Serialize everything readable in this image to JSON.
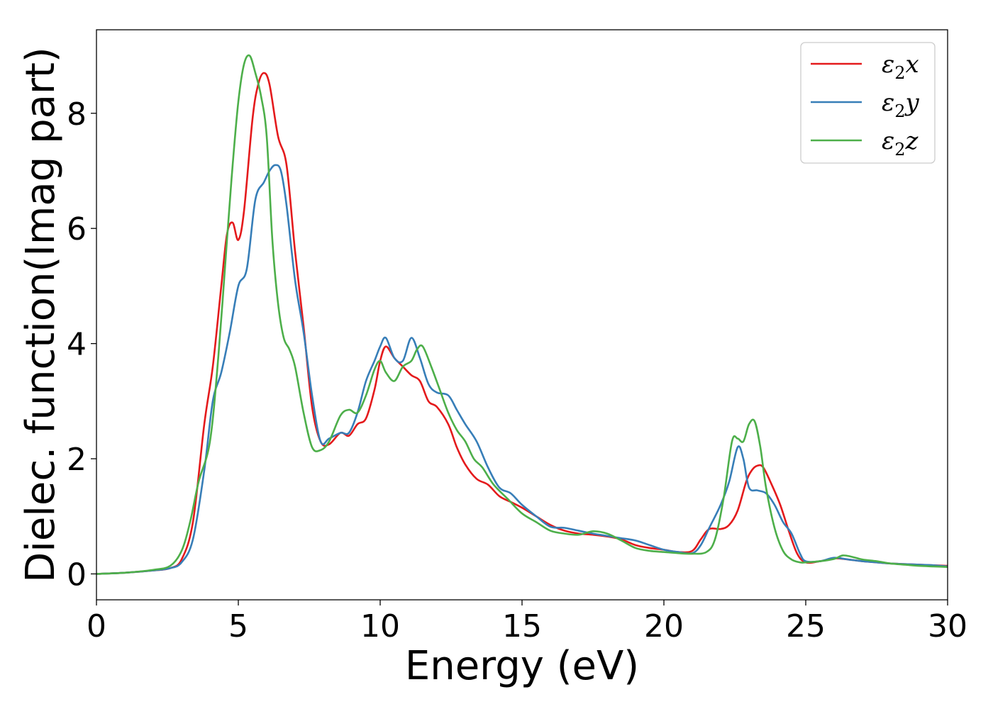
{
  "chart_data": {
    "type": "line",
    "title": "",
    "xlabel": "Energy (eV)",
    "ylabel": "Dielec. function(Imag part)",
    "xlim": [
      0,
      30
    ],
    "ylim": [
      -0.45,
      9.45
    ],
    "xticks": [
      0,
      5,
      10,
      15,
      20,
      25,
      30
    ],
    "xtick_labels": [
      "0",
      "5",
      "10",
      "15",
      "20",
      "25",
      "30"
    ],
    "yticks": [
      0,
      2,
      4,
      6,
      8
    ],
    "ytick_labels": [
      "0",
      "2",
      "4",
      "6",
      "8"
    ],
    "grid": false,
    "legend_position": "top-right",
    "series": [
      {
        "name": "ε₂x",
        "legend_base": "ε",
        "legend_sub": "2",
        "legend_axis": "x",
        "color": "#e41a1c",
        "x": [
          0,
          1,
          2,
          2.6,
          3,
          3.4,
          3.8,
          4.1,
          4.4,
          4.6,
          4.8,
          5,
          5.2,
          5.5,
          5.7,
          5.9,
          6.1,
          6.4,
          6.7,
          7,
          7.3,
          7.6,
          7.9,
          8.2,
          8.6,
          8.9,
          9.2,
          9.5,
          9.8,
          10,
          10.2,
          10.5,
          10.8,
          11.1,
          11.4,
          11.7,
          12,
          12.4,
          12.7,
          13,
          13.4,
          13.8,
          14.2,
          14.6,
          15,
          15.5,
          16,
          16.5,
          17,
          17.5,
          18,
          18.5,
          19,
          19.5,
          20,
          20.5,
          21,
          21.3,
          21.6,
          22,
          22.3,
          22.6,
          22.9,
          23.1,
          23.3,
          23.5,
          23.8,
          24.1,
          24.4,
          24.7,
          25,
          25.5,
          26,
          26.5,
          27,
          27.5,
          28,
          28.5,
          29,
          29.5,
          30
        ],
        "y": [
          0,
          0.02,
          0.06,
          0.1,
          0.25,
          0.9,
          2.6,
          3.6,
          5.0,
          5.9,
          6.1,
          5.8,
          6.3,
          7.9,
          8.5,
          8.7,
          8.5,
          7.6,
          7.1,
          5.6,
          4.3,
          2.9,
          2.3,
          2.25,
          2.45,
          2.4,
          2.6,
          2.7,
          3.2,
          3.7,
          3.95,
          3.75,
          3.6,
          3.45,
          3.35,
          3.0,
          2.9,
          2.6,
          2.2,
          1.9,
          1.65,
          1.55,
          1.35,
          1.25,
          1.15,
          1.0,
          0.85,
          0.75,
          0.7,
          0.68,
          0.65,
          0.6,
          0.5,
          0.45,
          0.42,
          0.38,
          0.4,
          0.6,
          0.78,
          0.78,
          0.85,
          1.1,
          1.6,
          1.8,
          1.88,
          1.85,
          1.55,
          1.2,
          0.75,
          0.35,
          0.2,
          0.22,
          0.27,
          0.25,
          0.22,
          0.2,
          0.18,
          0.17,
          0.16,
          0.15,
          0.14
        ]
      },
      {
        "name": "ε₂y",
        "legend_base": "ε",
        "legend_sub": "2",
        "legend_axis": "y",
        "color": "#377eb8",
        "x": [
          0,
          1,
          2,
          2.6,
          3,
          3.4,
          3.8,
          4.1,
          4.4,
          4.7,
          5,
          5.3,
          5.6,
          5.9,
          6.1,
          6.3,
          6.5,
          6.7,
          7,
          7.3,
          7.6,
          7.9,
          8.2,
          8.6,
          8.9,
          9.2,
          9.5,
          9.8,
          10,
          10.2,
          10.5,
          10.8,
          11.1,
          11.4,
          11.7,
          12,
          12.4,
          12.7,
          13,
          13.4,
          13.8,
          14.2,
          14.6,
          15,
          15.5,
          16,
          16.5,
          17,
          17.5,
          18,
          18.5,
          19,
          19.5,
          20,
          20.5,
          21,
          21.3,
          21.6,
          22,
          22.3,
          22.6,
          22.8,
          23,
          23.3,
          23.6,
          23.9,
          24.2,
          24.5,
          24.8,
          25,
          25.5,
          26,
          26.5,
          27,
          27.5,
          28,
          28.5,
          29,
          29.5,
          30
        ],
        "y": [
          0,
          0.02,
          0.06,
          0.1,
          0.2,
          0.6,
          1.8,
          3.0,
          3.5,
          4.2,
          5.0,
          5.3,
          6.5,
          6.8,
          7.0,
          7.1,
          7.0,
          6.4,
          5.1,
          4.2,
          3.1,
          2.3,
          2.35,
          2.45,
          2.45,
          2.8,
          3.35,
          3.7,
          3.95,
          4.1,
          3.75,
          3.7,
          4.1,
          3.75,
          3.3,
          3.15,
          3.1,
          2.85,
          2.6,
          2.3,
          1.85,
          1.5,
          1.4,
          1.2,
          1.0,
          0.82,
          0.8,
          0.75,
          0.7,
          0.66,
          0.62,
          0.58,
          0.5,
          0.42,
          0.38,
          0.36,
          0.5,
          0.8,
          1.2,
          1.6,
          2.2,
          2.0,
          1.5,
          1.45,
          1.4,
          1.2,
          0.9,
          0.7,
          0.35,
          0.22,
          0.22,
          0.28,
          0.25,
          0.22,
          0.2,
          0.18,
          0.17,
          0.16,
          0.15,
          0.13
        ]
      },
      {
        "name": "ε₂z",
        "legend_base": "ε",
        "legend_sub": "2",
        "legend_axis": "z",
        "color": "#4daf4a",
        "x": [
          0,
          1,
          2,
          2.6,
          3,
          3.3,
          3.6,
          4,
          4.3,
          4.6,
          4.8,
          5,
          5.2,
          5.4,
          5.6,
          5.8,
          6,
          6.2,
          6.4,
          6.6,
          6.8,
          7,
          7.3,
          7.6,
          7.9,
          8.2,
          8.6,
          8.9,
          9.2,
          9.5,
          9.8,
          10,
          10.2,
          10.5,
          10.8,
          11.1,
          11.3,
          11.5,
          11.8,
          12.1,
          12.4,
          12.7,
          13,
          13.3,
          13.6,
          14,
          14.5,
          15,
          15.5,
          16,
          16.5,
          17,
          17.5,
          18,
          18.5,
          19,
          19.5,
          20,
          20.5,
          21,
          21.5,
          21.8,
          22.1,
          22.4,
          22.6,
          22.8,
          23,
          23.2,
          23.4,
          23.6,
          23.9,
          24.2,
          24.5,
          24.8,
          25,
          25.5,
          26,
          26.3,
          26.6,
          27,
          27.5,
          28,
          28.5,
          29,
          29.5,
          30
        ],
        "y": [
          0,
          0.02,
          0.07,
          0.14,
          0.4,
          0.9,
          1.6,
          2.3,
          3.8,
          5.8,
          7.1,
          8.2,
          8.85,
          9.0,
          8.7,
          8.3,
          7.6,
          5.8,
          4.7,
          4.1,
          3.9,
          3.6,
          2.8,
          2.2,
          2.15,
          2.3,
          2.75,
          2.85,
          2.8,
          3.1,
          3.55,
          3.7,
          3.5,
          3.35,
          3.6,
          3.7,
          3.9,
          3.95,
          3.6,
          3.2,
          2.8,
          2.5,
          2.3,
          2.0,
          1.85,
          1.55,
          1.3,
          1.05,
          0.9,
          0.75,
          0.7,
          0.68,
          0.74,
          0.7,
          0.58,
          0.45,
          0.4,
          0.38,
          0.36,
          0.35,
          0.38,
          0.6,
          1.3,
          2.3,
          2.35,
          2.3,
          2.6,
          2.65,
          2.2,
          1.5,
          0.8,
          0.4,
          0.25,
          0.2,
          0.2,
          0.22,
          0.26,
          0.32,
          0.3,
          0.25,
          0.22,
          0.18,
          0.16,
          0.14,
          0.13,
          0.12
        ]
      }
    ]
  }
}
